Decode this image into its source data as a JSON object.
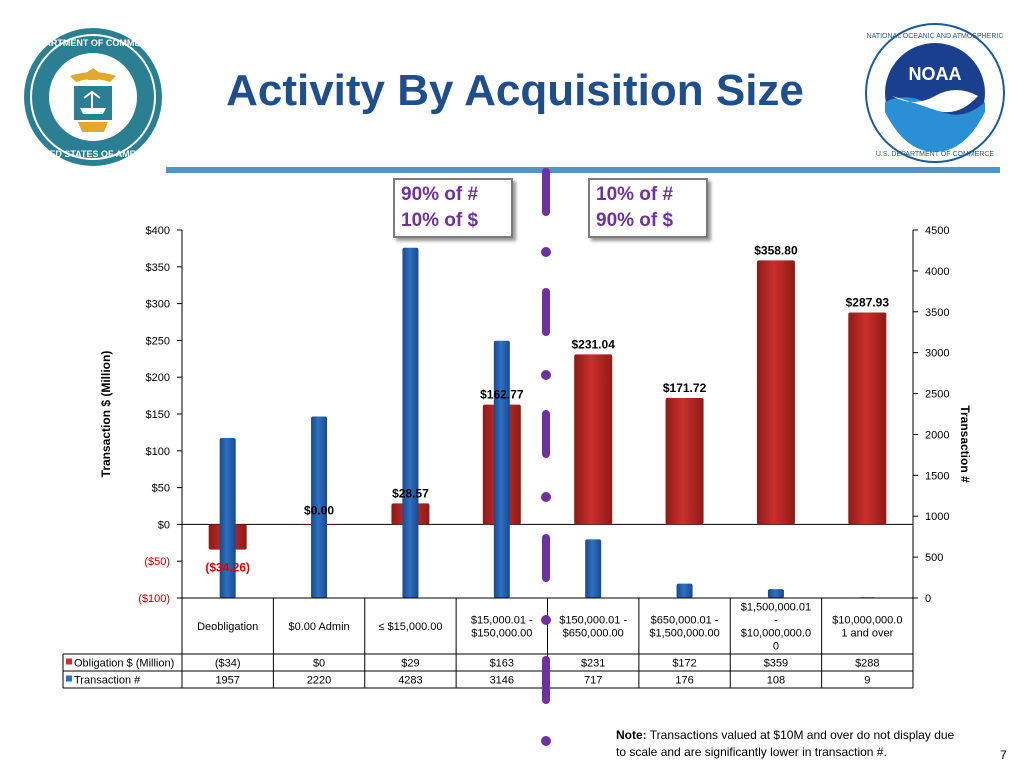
{
  "slide": {
    "title": "Activity By Acquisition Size",
    "page_number": "7",
    "note_label": "Note:",
    "note_text": "Transactions valued at $10M and over do not display due to scale and are significantly lower in transaction #.",
    "left_logo_text": "DEPARTMENT OF COMMERCE · UNITED STATES OF AMERICA",
    "right_logo_text": "NATIONAL OCEANIC AND ATMOSPHERIC ADMINISTRATION · U.S. DEPARTMENT OF COMMERCE",
    "right_logo_center": "NOAA"
  },
  "callouts": [
    {
      "line1": "90% of #",
      "line2": "10% of $"
    },
    {
      "line1": "10% of #",
      "line2": "90% of $"
    }
  ],
  "colors": {
    "title": "#1f4e8c",
    "rule": "#5b8fc6",
    "obligation": "#c9302c",
    "transaction": "#2f6fc4",
    "divider": "#7030a0",
    "negative_label": "#e00000"
  },
  "chart_data": {
    "type": "bar",
    "categories": [
      "Deobligation",
      "$0.00 Admin",
      "≤ $15,000.00",
      "$15,000.01 - $150,000.00",
      "$150,000.01 - $650,000.00",
      "$650,000.01 - $1,500,000.00",
      "$1,500,000.01 - $10,000,000.00",
      "$10,000,000.01 and over"
    ],
    "category_lines": [
      [
        "Deobligation"
      ],
      [
        "$0.00 Admin"
      ],
      [
        "≤ $15,000.00"
      ],
      [
        "$15,000.01 -",
        "$150,000.00"
      ],
      [
        "$150,000.01 -",
        "$650,000.00"
      ],
      [
        "$650,000.01 -",
        "$1,500,000.00"
      ],
      [
        "$1,500,000.01",
        "-",
        "$10,000,000.0",
        "0"
      ],
      [
        "$10,000,000.0",
        "1 and over"
      ]
    ],
    "series": [
      {
        "name": "Obligation $ (Million)",
        "axis": "left",
        "values": [
          -34.26,
          0.0,
          28.57,
          162.77,
          231.04,
          171.72,
          358.8,
          287.93
        ],
        "data_labels": [
          "($34.26)",
          "$0.00",
          "$28.57",
          "$162.77",
          "$231.04",
          "$171.72",
          "$358.80",
          "$287.93"
        ],
        "table_values": [
          "($34)",
          "$0",
          "$29",
          "$163",
          "$231",
          "$172",
          "$359",
          "$288"
        ]
      },
      {
        "name": "Transaction #",
        "axis": "right",
        "values": [
          1957,
          2220,
          4283,
          3146,
          717,
          176,
          108,
          9
        ],
        "table_values": [
          "1957",
          "2220",
          "4283",
          "3146",
          "717",
          "176",
          "108",
          "9"
        ]
      }
    ],
    "ylabel": "Transaction $ (Million)",
    "y2label": "Transaction #",
    "ylim": [
      -100,
      400
    ],
    "y2lim": [
      0,
      4500
    ],
    "yticks": [
      -100,
      -50,
      0,
      50,
      100,
      150,
      200,
      250,
      300,
      350,
      400
    ],
    "ytick_labels": [
      "($100)",
      "($50)",
      "$0",
      "$50",
      "$100",
      "$150",
      "$200",
      "$250",
      "$300",
      "$350",
      "$400"
    ],
    "y2ticks": [
      0,
      500,
      1000,
      1500,
      2000,
      2500,
      3000,
      3500,
      4000,
      4500
    ],
    "y2tick_labels": [
      "0",
      "500",
      "1000",
      "1500",
      "2000",
      "2500",
      "3000",
      "3500",
      "4000",
      "4500"
    ],
    "grid": false,
    "legend": "data-table"
  }
}
